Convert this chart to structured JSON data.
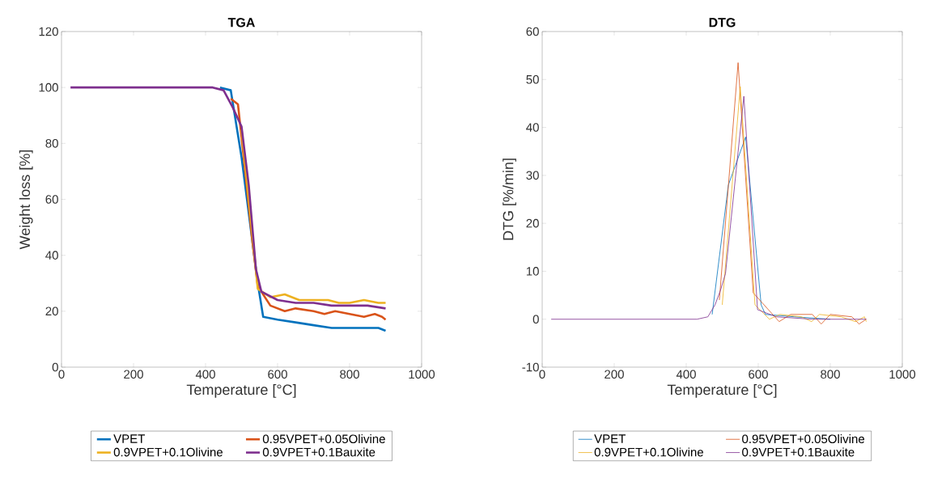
{
  "chart_data": [
    {
      "type": "line",
      "title": "TGA",
      "xlabel": "Temperature [°C]",
      "ylabel": "Weight loss [%]",
      "xlim": [
        0,
        1000
      ],
      "ylim": [
        0,
        120
      ],
      "xticks": [
        0,
        200,
        400,
        600,
        800,
        1000
      ],
      "yticks": [
        0,
        20,
        40,
        60,
        80,
        100,
        120
      ],
      "legend": "bottom",
      "series": [
        {
          "name": "VPET",
          "color": "#0072bd",
          "x": [
            440,
            470,
            500,
            530,
            545,
            560,
            600,
            650,
            700,
            750,
            800,
            850,
            880,
            900
          ],
          "values": [
            100,
            99,
            75,
            45,
            30,
            18,
            17,
            16,
            15,
            14,
            14,
            14,
            14,
            13
          ]
        },
        {
          "name": "0.95VPET+0.05Olivine",
          "color": "#d95319",
          "x": [
            470,
            490,
            510,
            530,
            545,
            580,
            620,
            650,
            700,
            730,
            760,
            800,
            840,
            870,
            890,
            900
          ],
          "values": [
            96,
            94,
            70,
            45,
            29,
            22,
            20,
            21,
            20,
            19,
            20,
            19,
            18,
            19,
            18,
            17
          ]
        },
        {
          "name": "0.9VPET+0.1Olivine",
          "color": "#edb120",
          "x": [
            500,
            520,
            545,
            580,
            620,
            660,
            700,
            740,
            770,
            800,
            840,
            880,
            900
          ],
          "values": [
            85,
            60,
            28,
            25,
            26,
            24,
            24,
            24,
            23,
            23,
            24,
            23,
            23
          ]
        },
        {
          "name": "0.9VPET+0.1Bauxite",
          "color": "#7e2f8e",
          "x": [
            25,
            100,
            200,
            330,
            420,
            450,
            475,
            500,
            520,
            540,
            555,
            600,
            650,
            700,
            750,
            800,
            850,
            900
          ],
          "values": [
            100,
            100,
            100,
            100,
            100,
            99,
            93,
            86,
            65,
            35,
            27,
            24,
            23,
            23,
            22,
            22,
            22,
            21
          ]
        }
      ]
    },
    {
      "type": "line",
      "title": "DTG",
      "xlabel": "Temperature [°C]",
      "ylabel": "DTG [%/min]",
      "xlim": [
        0,
        1000
      ],
      "ylim": [
        -10,
        60
      ],
      "xticks": [
        0,
        200,
        400,
        600,
        800,
        1000
      ],
      "yticks": [
        -10,
        0,
        10,
        20,
        30,
        40,
        50,
        60
      ],
      "legend": "bottom",
      "series": [
        {
          "name": "VPET",
          "color": "#0072bd",
          "x": [
            472,
            512,
            517,
            565,
            608,
            620,
            700,
            800
          ],
          "values": [
            1,
            25,
            28,
            38,
            3,
            1,
            0.5,
            0
          ]
        },
        {
          "name": "0.95VPET+0.05Olivine",
          "color": "#d95319",
          "x": [
            492,
            544,
            586,
            658,
            690,
            750,
            775,
            800,
            860,
            880,
            900
          ],
          "values": [
            4,
            53.5,
            5.5,
            -0.5,
            1,
            1,
            -1,
            1,
            0.5,
            -1,
            0
          ]
        },
        {
          "name": "0.9VPET+0.1Olivine",
          "color": "#edb120",
          "x": [
            500,
            550,
            591,
            631,
            660,
            720,
            748,
            770,
            830,
            870,
            895,
            900
          ],
          "values": [
            3,
            48.5,
            3,
            0,
            1,
            0.5,
            -0.5,
            1,
            0.5,
            -0.5,
            0.5,
            -0.5
          ]
        },
        {
          "name": "0.9VPET+0.1Bauxite",
          "color": "#7e2f8e",
          "x": [
            25,
            100,
            200,
            330,
            380,
            430,
            460,
            480,
            495,
            509,
            560,
            598,
            650,
            750,
            900
          ],
          "values": [
            0,
            0,
            0,
            0,
            0,
            0,
            0.5,
            3,
            6,
            9.5,
            46.5,
            2,
            0.5,
            0,
            0
          ]
        }
      ]
    }
  ]
}
